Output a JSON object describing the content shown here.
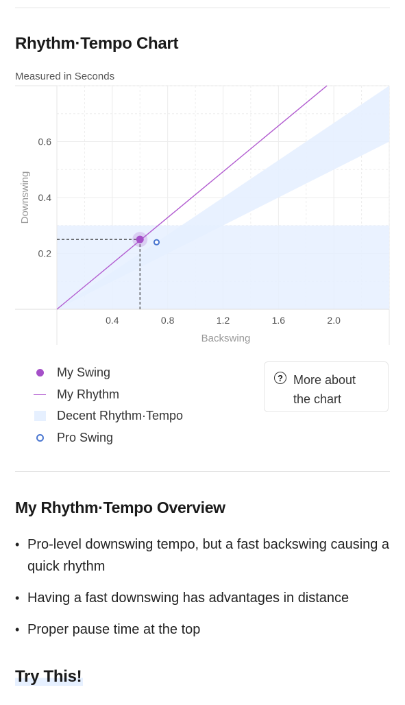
{
  "chart_section": {
    "title": "Rhythm·Tempo Chart",
    "subtitle": "Measured in Seconds"
  },
  "chart_data": {
    "type": "scatter",
    "xlabel": "Backswing",
    "ylabel": "Downswing",
    "xlim": [
      0,
      2.4
    ],
    "ylim": [
      0,
      0.8
    ],
    "x_ticks": [
      "0.4",
      "0.8",
      "1.2",
      "1.6",
      "2.0"
    ],
    "y_ticks": [
      "0.2",
      "0.4",
      "0.6"
    ],
    "grid": true,
    "my_swing": {
      "x": 0.6,
      "y": 0.25
    },
    "pro_swing": {
      "x": 0.72,
      "y": 0.24
    },
    "my_rhythm_line": {
      "x": [
        0,
        1.95
      ],
      "y": [
        0,
        0.8
      ]
    },
    "decent_band": {
      "upper": {
        "x": [
          0,
          2.4
        ],
        "y": [
          0,
          0.8
        ]
      },
      "lower": {
        "x": [
          0,
          2.4
        ],
        "y": [
          0,
          0.6
        ]
      },
      "horizontal_y_max": 0.3
    },
    "colors": {
      "my_swing": "#a550c8",
      "my_rhythm": "#b25cd0",
      "decent_band": "#e6f0ff",
      "pro_swing": "#4a76d0"
    }
  },
  "legend": [
    {
      "label": "My Swing",
      "marker": "dot"
    },
    {
      "label": "My Rhythm",
      "marker": "line"
    },
    {
      "label": "Decent Rhythm·Tempo",
      "marker": "box"
    },
    {
      "label": "Pro Swing",
      "marker": "ring"
    }
  ],
  "more_button": {
    "icon": "question-circle-icon",
    "icon_glyph": "?",
    "label": "More about the chart"
  },
  "overview": {
    "title": "My Rhythm·Tempo Overview",
    "bullets": [
      "Pro-level downswing tempo, but a fast backswing causing a quick rhythm",
      "Having a fast downswing has advantages in distance",
      "Proper pause time at the top"
    ]
  },
  "try_this": {
    "title": "Try This!"
  }
}
